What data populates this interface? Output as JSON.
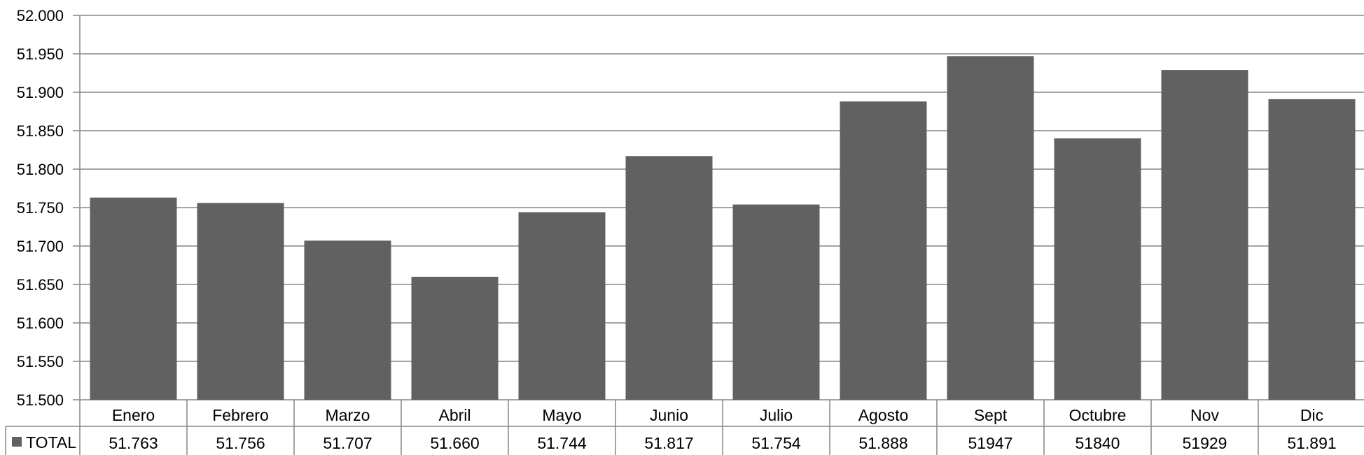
{
  "chart_data": {
    "type": "bar",
    "categories": [
      "Enero",
      "Febrero",
      "Marzo",
      "Abril",
      "Mayo",
      "Junio",
      "Julio",
      "Agosto",
      "Sept",
      "Octubre",
      "Nov",
      "Dic"
    ],
    "series": [
      {
        "name": "TOTAL",
        "values": [
          51763,
          51756,
          51707,
          51660,
          51744,
          51817,
          51754,
          51888,
          51947,
          51840,
          51929,
          51891
        ],
        "value_labels": [
          "51.763",
          "51.756",
          "51.707",
          "51.660",
          "51.744",
          "51.817",
          "51.754",
          "51.888",
          "51947",
          "51840",
          "51929",
          "51.891"
        ],
        "color": "#616161"
      }
    ],
    "y_ticks": [
      "51.500",
      "51.550",
      "51.600",
      "51.650",
      "51.700",
      "51.750",
      "51.800",
      "51.850",
      "51.900",
      "51.950",
      "52.000"
    ],
    "ylim": [
      51500,
      52000
    ],
    "y_step": 50,
    "grid": true,
    "legend": "data-table-left",
    "data_table": true
  },
  "colors": {
    "bar": "#616161",
    "grid": "#868686",
    "text": "#000000"
  }
}
